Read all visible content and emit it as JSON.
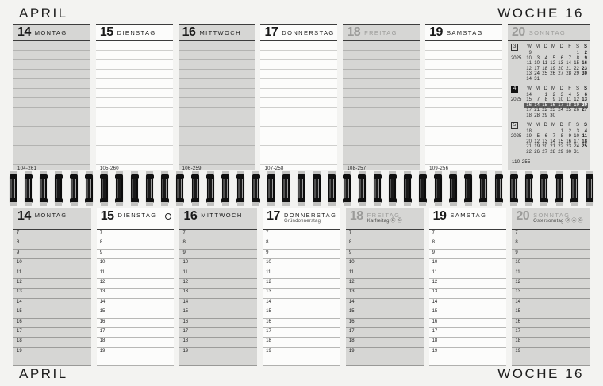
{
  "header": {
    "month_label": "APRIL",
    "week_label": "WOCHE 16"
  },
  "footer": {
    "month_label": "APRIL",
    "week_label": "WOCHE 16"
  },
  "icons": {
    "full_moon": ""
  },
  "note_line_count": 13,
  "hours": [
    "7",
    "8",
    "9",
    "10",
    "11",
    "12",
    "13",
    "14",
    "15",
    "16",
    "17",
    "18",
    "19"
  ],
  "days": [
    {
      "num": "14",
      "name": "MONTAG",
      "gray": true,
      "muted": false,
      "holiday": "",
      "moon": false,
      "day_of_year": "104-261",
      "minicals": false
    },
    {
      "num": "15",
      "name": "DIENSTAG",
      "gray": false,
      "muted": false,
      "holiday": "",
      "moon": true,
      "day_of_year": "105-260",
      "minicals": false
    },
    {
      "num": "16",
      "name": "MITTWOCH",
      "gray": true,
      "muted": false,
      "holiday": "",
      "moon": false,
      "day_of_year": "106-259",
      "minicals": false
    },
    {
      "num": "17",
      "name": "DONNERSTAG",
      "gray": false,
      "muted": false,
      "holiday": "Gründonnerstag",
      "moon": false,
      "day_of_year": "107-258",
      "minicals": false
    },
    {
      "num": "18",
      "name": "FREITAG",
      "gray": true,
      "muted": true,
      "holiday": "Karfreitag Ⓓ Ⓒ",
      "moon": false,
      "day_of_year": "108-257",
      "minicals": false
    },
    {
      "num": "19",
      "name": "SAMSTAG",
      "gray": false,
      "muted": false,
      "holiday": "",
      "moon": false,
      "day_of_year": "109-256",
      "minicals": false
    },
    {
      "num": "20",
      "name": "SONNTAG",
      "gray": true,
      "muted": true,
      "holiday": "Ostersonntag Ⓓ Ⓐ Ⓒ",
      "moon": false,
      "day_of_year": "110-255",
      "minicals": true
    }
  ],
  "mini_calendars": [
    {
      "month": "3",
      "year": "2025",
      "current": false,
      "week_col_label": "W",
      "day_headers": [
        "M",
        "D",
        "M",
        "D",
        "F",
        "S",
        "S"
      ],
      "rows": [
        {
          "week": "9",
          "days": [
            "",
            "",
            "",
            "",
            "",
            "1",
            "2"
          ],
          "highlight": false
        },
        {
          "week": "10",
          "days": [
            "3",
            "4",
            "5",
            "6",
            "7",
            "8",
            "9"
          ],
          "highlight": false
        },
        {
          "week": "11",
          "days": [
            "10",
            "11",
            "12",
            "13",
            "14",
            "15",
            "16"
          ],
          "highlight": false
        },
        {
          "week": "12",
          "days": [
            "17",
            "18",
            "19",
            "20",
            "21",
            "22",
            "23"
          ],
          "highlight": false
        },
        {
          "week": "13",
          "days": [
            "24",
            "25",
            "26",
            "27",
            "28",
            "29",
            "30"
          ],
          "highlight": false
        },
        {
          "week": "14",
          "days": [
            "31",
            "",
            "",
            "",
            "",
            "",
            ""
          ],
          "highlight": false
        }
      ]
    },
    {
      "month": "4",
      "year": "2025",
      "current": true,
      "week_col_label": "W",
      "day_headers": [
        "M",
        "D",
        "M",
        "D",
        "F",
        "S",
        "S"
      ],
      "rows": [
        {
          "week": "14",
          "days": [
            "",
            "1",
            "2",
            "3",
            "4",
            "5",
            "6"
          ],
          "highlight": false
        },
        {
          "week": "15",
          "days": [
            "7",
            "8",
            "9",
            "10",
            "11",
            "12",
            "13"
          ],
          "highlight": false
        },
        {
          "week": "16",
          "days": [
            "14",
            "15",
            "16",
            "17",
            "18",
            "19",
            "20"
          ],
          "highlight": true
        },
        {
          "week": "17",
          "days": [
            "21",
            "22",
            "23",
            "24",
            "25",
            "26",
            "27"
          ],
          "highlight": false
        },
        {
          "week": "18",
          "days": [
            "28",
            "29",
            "30",
            "",
            "",
            "",
            ""
          ],
          "highlight": false
        }
      ]
    },
    {
      "month": "5",
      "year": "2025",
      "current": false,
      "week_col_label": "W",
      "day_headers": [
        "M",
        "D",
        "M",
        "D",
        "F",
        "S",
        "S"
      ],
      "rows": [
        {
          "week": "18",
          "days": [
            "",
            "",
            "",
            "1",
            "2",
            "3",
            "4"
          ],
          "highlight": false
        },
        {
          "week": "19",
          "days": [
            "5",
            "6",
            "7",
            "8",
            "9",
            "10",
            "11"
          ],
          "highlight": false
        },
        {
          "week": "20",
          "days": [
            "12",
            "13",
            "14",
            "15",
            "16",
            "17",
            "18"
          ],
          "highlight": false
        },
        {
          "week": "21",
          "days": [
            "19",
            "20",
            "21",
            "22",
            "23",
            "24",
            "25"
          ],
          "highlight": false
        },
        {
          "week": "22",
          "days": [
            "26",
            "27",
            "28",
            "29",
            "30",
            "31",
            ""
          ],
          "highlight": false
        }
      ]
    }
  ],
  "spiral_loop_count": 39,
  "colors": {
    "column_gray": "#d6d6d4",
    "highlight_week_bg": "#5a5a5a",
    "muted_day_number": "#9b9b99",
    "separator_dark": "#3c3c3c"
  }
}
